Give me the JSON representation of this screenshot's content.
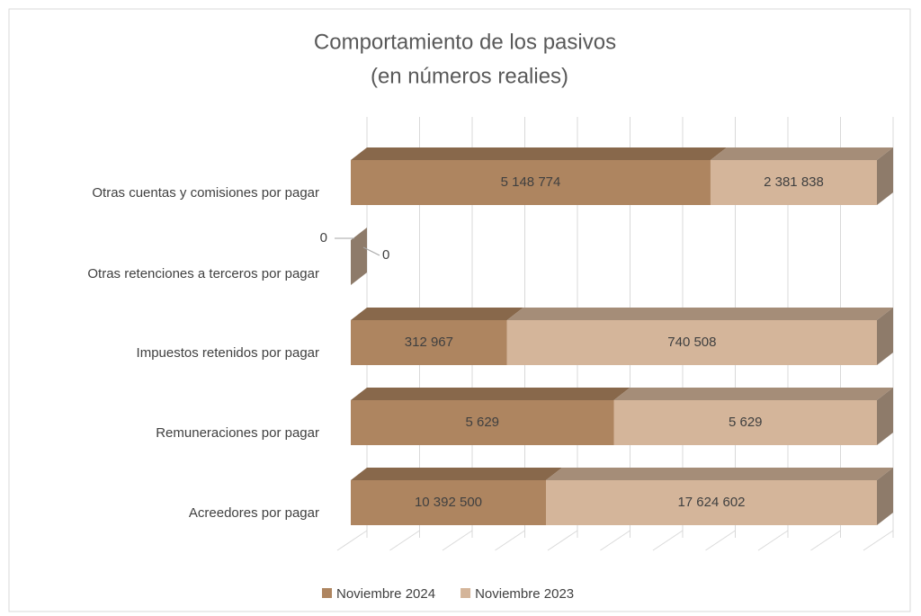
{
  "chart_data": {
    "type": "bar",
    "orientation": "horizontal",
    "stacking": "percent",
    "title": "Comportamiento de los pasivos",
    "subtitle": "(en números realies)",
    "categories": [
      "Otras cuentas y comisiones por pagar",
      "Otras retenciones a terceros por pagar",
      "Impuestos retenidos por pagar",
      "Remuneraciones por pagar",
      "Acreedores por pagar"
    ],
    "series": [
      {
        "name": "Noviembre 2024",
        "color": "#ae8560",
        "values": [
          5148774,
          0,
          312967,
          5629,
          10392500
        ],
        "value_labels": [
          "5 148 774",
          "0",
          "312 967",
          "5 629",
          "10 392 500"
        ]
      },
      {
        "name": "Noviembre 2023",
        "color": "#d4b59a",
        "values": [
          2381838,
          0,
          740508,
          5629,
          17624602
        ],
        "value_labels": [
          "2 381 838",
          "0",
          "740 508",
          "5 629",
          "17 624 602"
        ]
      }
    ],
    "xlim": [
      0,
      100
    ],
    "xticks": [
      0,
      10,
      20,
      30,
      40,
      50,
      60,
      70,
      80,
      90,
      100
    ],
    "grid": true,
    "legend": "bottom"
  }
}
